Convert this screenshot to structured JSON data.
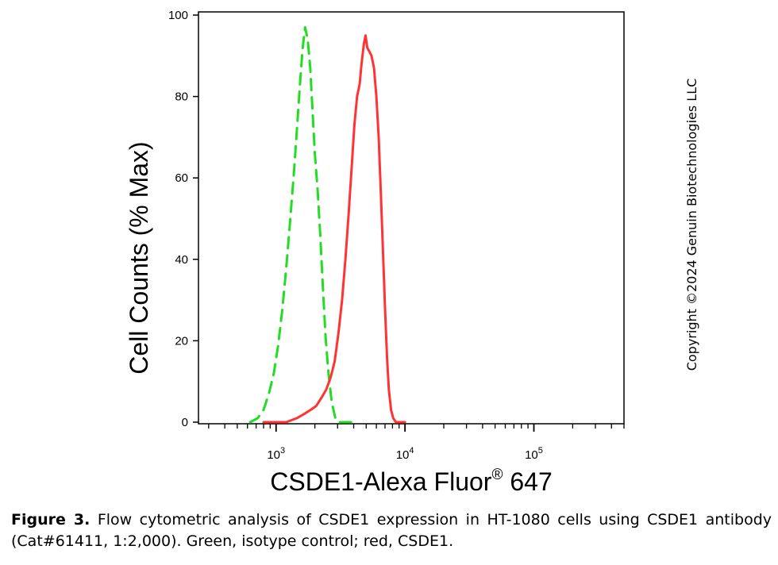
{
  "chart_data": {
    "type": "line",
    "xlabel": "CSDE1-Alexa Fluor",
    "xlabel_sup": "®",
    "xlabel_suffix": " 647",
    "ylabel": "Cell Counts (% Max)",
    "x_scale": "log",
    "xlim": [
      250,
      500000
    ],
    "ylim": [
      0,
      100
    ],
    "y_ticks": [
      0,
      20,
      40,
      60,
      80,
      100
    ],
    "x_major_ticks": [
      {
        "value": 1000,
        "base": "10",
        "exp": "3"
      },
      {
        "value": 10000,
        "base": "10",
        "exp": "4"
      },
      {
        "value": 100000,
        "base": "10",
        "exp": "5"
      }
    ],
    "grid": false,
    "legend": "none",
    "series": [
      {
        "color": "#22dd22",
        "style": "dashed",
        "points": [
          [
            630,
            0
          ],
          [
            720,
            1
          ],
          [
            800,
            3
          ],
          [
            880,
            7
          ],
          [
            960,
            12
          ],
          [
            1040,
            19
          ],
          [
            1120,
            28
          ],
          [
            1200,
            38
          ],
          [
            1290,
            50
          ],
          [
            1380,
            62
          ],
          [
            1460,
            73
          ],
          [
            1540,
            84
          ],
          [
            1610,
            92
          ],
          [
            1680,
            97
          ],
          [
            1760,
            94
          ],
          [
            1840,
            87
          ],
          [
            1920,
            76
          ],
          [
            2000,
            66
          ],
          [
            2100,
            57
          ],
          [
            2200,
            46
          ],
          [
            2300,
            34
          ],
          [
            2420,
            21
          ],
          [
            2550,
            12
          ],
          [
            2700,
            5
          ],
          [
            2880,
            1
          ],
          [
            3050,
            0
          ],
          [
            3500,
            0
          ],
          [
            4000,
            0
          ]
        ]
      },
      {
        "color": "#ff3333",
        "style": "solid",
        "points": [
          [
            800,
            0
          ],
          [
            1200,
            0
          ],
          [
            1450,
            1
          ],
          [
            1650,
            2
          ],
          [
            1850,
            3
          ],
          [
            2050,
            4
          ],
          [
            2250,
            6
          ],
          [
            2450,
            8
          ],
          [
            2650,
            11
          ],
          [
            2850,
            15
          ],
          [
            3050,
            22
          ],
          [
            3250,
            30
          ],
          [
            3450,
            40
          ],
          [
            3650,
            51
          ],
          [
            3850,
            62
          ],
          [
            4050,
            73
          ],
          [
            4250,
            80
          ],
          [
            4450,
            83
          ],
          [
            4600,
            88
          ],
          [
            4800,
            93
          ],
          [
            4950,
            95
          ],
          [
            5100,
            92
          ],
          [
            5300,
            91
          ],
          [
            5500,
            90
          ],
          [
            5750,
            87
          ],
          [
            6000,
            80
          ],
          [
            6250,
            70
          ],
          [
            6500,
            56
          ],
          [
            6750,
            42
          ],
          [
            7000,
            28
          ],
          [
            7250,
            16
          ],
          [
            7500,
            8
          ],
          [
            7800,
            3
          ],
          [
            8100,
            1
          ],
          [
            8500,
            0
          ],
          [
            10000,
            0
          ]
        ]
      }
    ]
  },
  "copyright": "Copyright ©2024 Genuin Biotechnologies LLC",
  "caption": {
    "label": "Figure 3.",
    "text": " Flow cytometric analysis of CSDE1 expression in HT-1080 cells using CSDE1 antibody (Cat#61411, 1:2,000). Green, isotype control; red, CSDE1."
  }
}
